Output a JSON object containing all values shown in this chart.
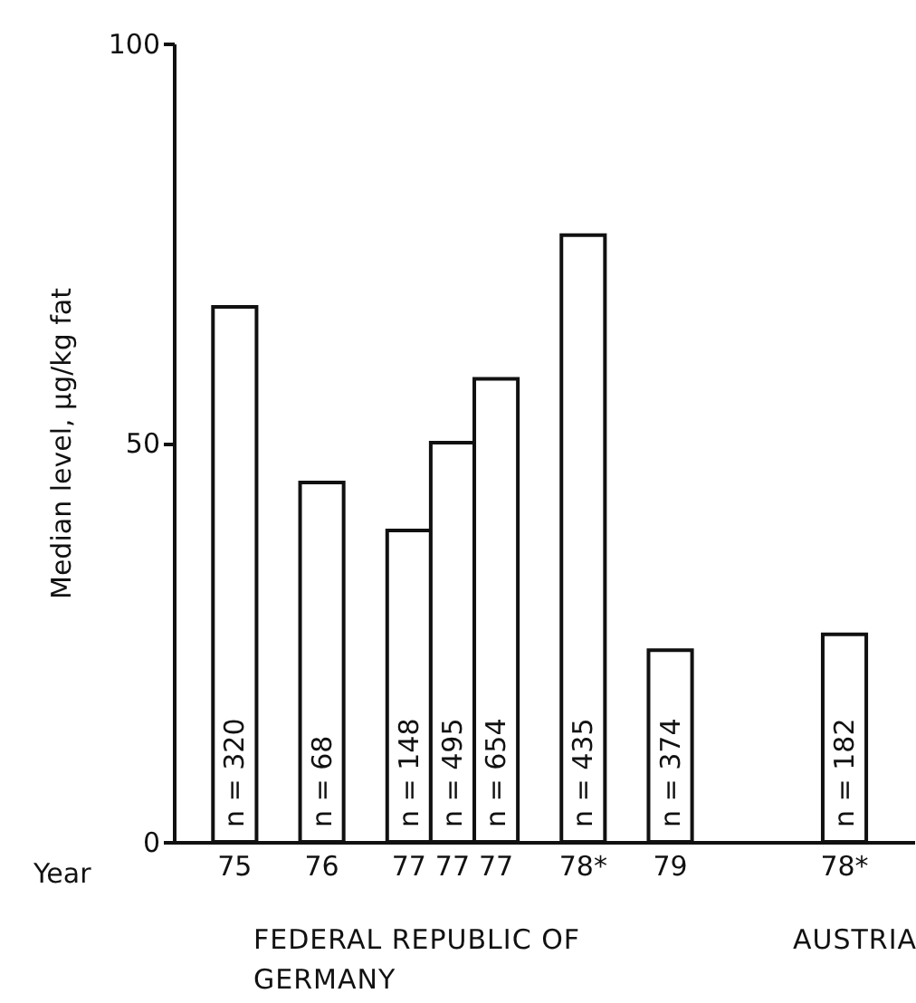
{
  "chart_data": {
    "type": "bar",
    "ylabel": "Median level, µg/kg fat",
    "xlabel": "Year",
    "categories": [
      "75",
      null,
      "76",
      null,
      "77",
      "77",
      "77",
      null,
      "78*",
      null,
      "79",
      null,
      null,
      null,
      "78*"
    ],
    "values": [
      67,
      null,
      45,
      null,
      39,
      50,
      58,
      null,
      76,
      null,
      24,
      null,
      null,
      null,
      26
    ],
    "color": "#ffffff",
    "ylim": [
      0,
      100
    ],
    "yticks": [
      0,
      50,
      100
    ],
    "grid": false,
    "annotations": [
      {
        "text": "n = 320",
        "x": "75",
        "y": 0
      },
      {
        "text": "n = 68",
        "x": "76",
        "y": 0
      },
      {
        "text": "n = 148",
        "x": "77",
        "y": 0
      },
      {
        "text": "n = 495",
        "x": "77",
        "y": 0
      },
      {
        "text": "n = 654",
        "x": "77",
        "y": 0
      },
      {
        "text": "n = 435",
        "x": "78*",
        "y": 0
      },
      {
        "text": "n = 374",
        "x": "79",
        "y": 0
      },
      "n = 182",
      "FEDERAL REPUBLIC OF GERMANY",
      "AUSTRIA"
    ]
  }
}
